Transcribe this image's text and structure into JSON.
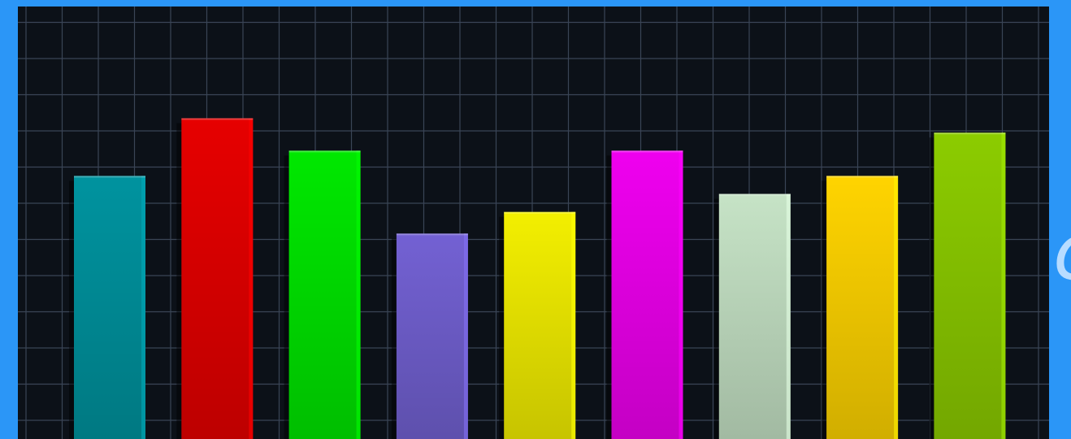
{
  "colors": {
    "frame": "#2b96f7",
    "background": "#0c1118",
    "grid": "#3a4556"
  },
  "edge_text": "c",
  "chart_data": {
    "type": "bar",
    "title": "",
    "xlabel": "",
    "ylabel": "",
    "grid": true,
    "legend": "none",
    "ylim": [
      0,
      12
    ],
    "categories": [
      "",
      "",
      "",
      "",
      "",
      "",
      "",
      "",
      ""
    ],
    "values": [
      7.3,
      8.9,
      8.0,
      5.7,
      6.3,
      8.0,
      6.8,
      7.3,
      8.5
    ],
    "bar_colors": [
      "#00939f",
      "#e60000",
      "#00e800",
      "#7361d3",
      "#f3ef00",
      "#ef00ef",
      "#c6e3c6",
      "#ffd400",
      "#8ccc00"
    ]
  }
}
